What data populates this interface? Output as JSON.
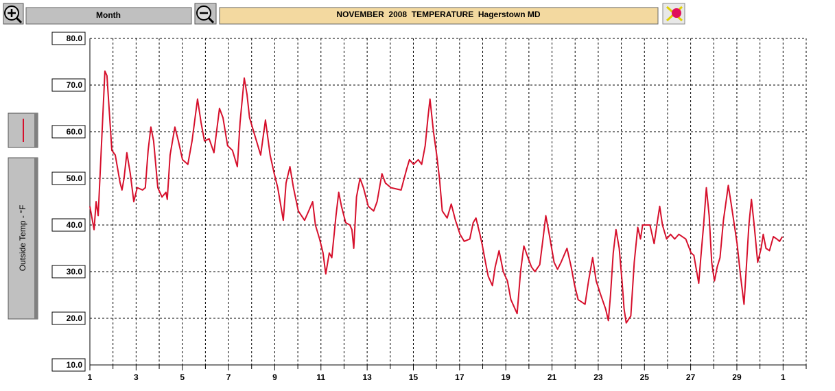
{
  "toolbar": {
    "period": "Month"
  },
  "chart_data": {
    "type": "line",
    "title": "NOVEMBER  2008  TEMPERATURE  Hagerstown MD",
    "y_label": "Outside Temp - °F",
    "xlim": [
      1,
      32
    ],
    "ylim": [
      10,
      80
    ],
    "xticks": [
      1,
      3,
      5,
      7,
      9,
      11,
      13,
      15,
      17,
      19,
      21,
      23,
      25,
      27,
      29,
      {
        "value": 31,
        "label": "1"
      }
    ],
    "minor_xticks": [
      2,
      4,
      6,
      8,
      10,
      12,
      14,
      16,
      18,
      20,
      22,
      24,
      26,
      28,
      30,
      32
    ],
    "yticks": [
      {
        "value": 10,
        "label": "10.0"
      },
      {
        "value": 20,
        "label": "20.0"
      },
      {
        "value": 30,
        "label": "30.0"
      },
      {
        "value": 40,
        "label": "40.0"
      },
      {
        "value": 50,
        "label": "50.0"
      },
      {
        "value": 60,
        "label": "60.0"
      },
      {
        "value": 70,
        "label": "70.0"
      },
      {
        "value": 80,
        "label": "80.0"
      }
    ],
    "grid": true,
    "series": [
      {
        "name": "Outside Temp",
        "color": "#d6102c",
        "x": [
          1.0,
          1.18,
          1.27,
          1.36,
          1.65,
          1.74,
          1.95,
          2.1,
          2.31,
          2.39,
          2.48,
          2.6,
          2.75,
          2.9,
          3.05,
          3.28,
          3.4,
          3.52,
          3.64,
          3.76,
          3.94,
          4.12,
          4.29,
          4.35,
          4.47,
          4.68,
          4.83,
          5.01,
          5.24,
          5.42,
          5.66,
          5.81,
          5.96,
          6.16,
          6.37,
          6.61,
          6.76,
          6.96,
          7.17,
          7.38,
          7.5,
          7.68,
          7.8,
          7.91,
          8.15,
          8.39,
          8.6,
          8.8,
          8.98,
          9.13,
          9.37,
          9.49,
          9.66,
          9.81,
          10.02,
          10.29,
          10.47,
          10.64,
          10.76,
          10.94,
          11.09,
          11.21,
          11.36,
          11.47,
          11.65,
          11.77,
          11.89,
          12.07,
          12.25,
          12.34,
          12.42,
          12.54,
          12.69,
          12.84,
          13.05,
          13.28,
          13.43,
          13.64,
          13.79,
          14.03,
          14.47,
          14.71,
          14.83,
          15.01,
          15.21,
          15.36,
          15.51,
          15.63,
          15.72,
          15.87,
          16.01,
          16.13,
          16.25,
          16.46,
          16.64,
          16.82,
          17.02,
          17.2,
          17.44,
          17.59,
          17.71,
          17.88,
          17.97,
          18.12,
          18.24,
          18.42,
          18.54,
          18.71,
          18.89,
          19.07,
          19.22,
          19.49,
          19.64,
          19.78,
          19.96,
          20.11,
          20.26,
          20.47,
          20.61,
          20.73,
          20.88,
          21.09,
          21.24,
          21.39,
          21.65,
          21.83,
          21.98,
          22.13,
          22.43,
          22.58,
          22.76,
          22.91,
          23.11,
          23.32,
          23.44,
          23.53,
          23.65,
          23.77,
          23.91,
          24.03,
          24.12,
          24.21,
          24.41,
          24.56,
          24.71,
          24.83,
          24.92,
          25.24,
          25.42,
          25.54,
          25.66,
          25.78,
          25.96,
          26.13,
          26.31,
          26.49,
          26.79,
          27.02,
          27.14,
          27.35,
          27.44,
          27.56,
          27.68,
          27.8,
          27.91,
          28.03,
          28.15,
          28.27,
          28.42,
          28.63,
          28.74,
          28.89,
          29.01,
          29.16,
          29.31,
          29.4,
          29.52,
          29.63,
          29.75,
          29.9,
          30.05,
          30.14,
          30.26,
          30.41,
          30.58,
          30.73,
          30.85,
          30.97
        ],
        "values": [
          44,
          39,
          45,
          42,
          73,
          72,
          56,
          55,
          49,
          47.5,
          50,
          55.5,
          51,
          45,
          48,
          47.5,
          48,
          56,
          61,
          58,
          48,
          46,
          47,
          45.5,
          55,
          61,
          58,
          54,
          53,
          58,
          67,
          62,
          58,
          58.5,
          55.5,
          65,
          63,
          57,
          56,
          52.5,
          62,
          71.5,
          68,
          63,
          59,
          55,
          62.5,
          55,
          51,
          48,
          41,
          49,
          52.5,
          48,
          43,
          41,
          43,
          45,
          40,
          37,
          34,
          29.5,
          34,
          33,
          42,
          47,
          44,
          40.5,
          40,
          39,
          35,
          46,
          50,
          48,
          44,
          43,
          45,
          51,
          49,
          48,
          47.5,
          52,
          54,
          53,
          54,
          53,
          57,
          63,
          67,
          60,
          55,
          50,
          43,
          41.5,
          44.5,
          41,
          38,
          36.5,
          37,
          40.5,
          41.5,
          38,
          36,
          32,
          29,
          27,
          31,
          34.5,
          30,
          28,
          24,
          21,
          30,
          35.5,
          33,
          31,
          30,
          31.5,
          37,
          42,
          38,
          32,
          30.5,
          32,
          35,
          31,
          27,
          24,
          23,
          28,
          33,
          28,
          25,
          22,
          19.5,
          25,
          34,
          39,
          35,
          28,
          22,
          19,
          20.5,
          32,
          39.5,
          37,
          40,
          40,
          36,
          40,
          44,
          40,
          37,
          38,
          37,
          38,
          37,
          34,
          33.5,
          27.5,
          33,
          40,
          48,
          42,
          32,
          28,
          31,
          33,
          41,
          48.5,
          45,
          40,
          36,
          29,
          23,
          30,
          40,
          45.5,
          40,
          32,
          35,
          38,
          35,
          34.5,
          37.5,
          37,
          36.5,
          37.5
        ]
      }
    ]
  }
}
